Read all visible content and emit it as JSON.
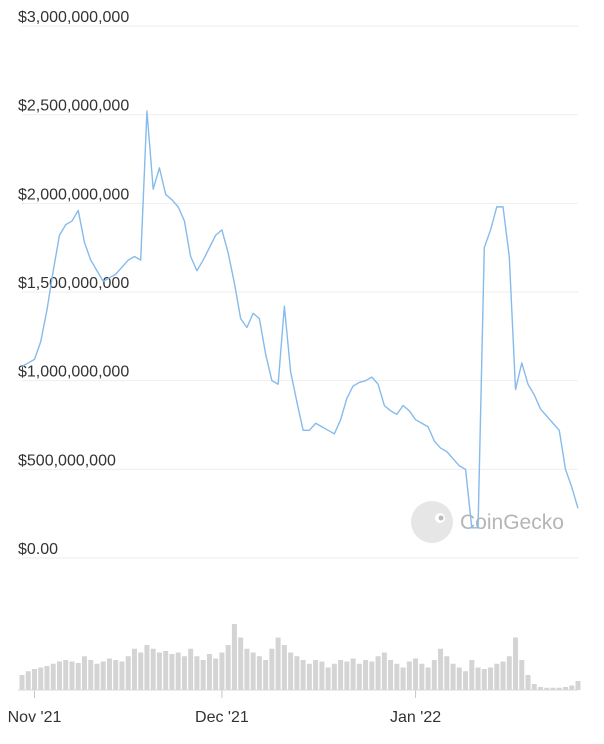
{
  "chart_data": [
    {
      "type": "line",
      "color": "#86bbec",
      "grid": true,
      "watermark": "CoinGecko",
      "ylim": [
        0,
        3000000000
      ],
      "yticks": [
        {
          "value": 0,
          "label": "$0.00"
        },
        {
          "value": 500000000,
          "label": "$500,000,000"
        },
        {
          "value": 1000000000,
          "label": "$1,000,000,000"
        },
        {
          "value": 1500000000,
          "label": "$1,500,000,000"
        },
        {
          "value": 2000000000,
          "label": "$2,000,000,000"
        },
        {
          "value": 2500000000,
          "label": "$2,500,000,000"
        },
        {
          "value": 3000000000,
          "label": "$3,000,000,000"
        }
      ],
      "xlim": [
        0,
        89
      ],
      "xticks": [
        {
          "value": 2,
          "label": "Nov '21"
        },
        {
          "value": 32,
          "label": "Dec '21"
        },
        {
          "value": 63,
          "label": "Jan '22"
        }
      ],
      "values": [
        1080000000,
        1100000000,
        1120000000,
        1220000000,
        1400000000,
        1620000000,
        1820000000,
        1880000000,
        1900000000,
        1960000000,
        1780000000,
        1680000000,
        1620000000,
        1560000000,
        1580000000,
        1600000000,
        1640000000,
        1680000000,
        1700000000,
        1680000000,
        2520000000,
        2080000000,
        2200000000,
        2050000000,
        2020000000,
        1980000000,
        1900000000,
        1700000000,
        1620000000,
        1680000000,
        1750000000,
        1820000000,
        1850000000,
        1720000000,
        1550000000,
        1350000000,
        1300000000,
        1380000000,
        1350000000,
        1150000000,
        1000000000,
        980000000,
        1420000000,
        1050000000,
        880000000,
        720000000,
        720000000,
        760000000,
        740000000,
        720000000,
        700000000,
        780000000,
        900000000,
        970000000,
        990000000,
        1000000000,
        1020000000,
        980000000,
        860000000,
        830000000,
        810000000,
        860000000,
        830000000,
        780000000,
        760000000,
        740000000,
        660000000,
        620000000,
        600000000,
        560000000,
        520000000,
        500000000,
        170000000,
        170000000,
        1750000000,
        1850000000,
        1980000000,
        1980000000,
        1700000000,
        950000000,
        1100000000,
        980000000,
        920000000,
        840000000,
        800000000,
        760000000,
        720000000,
        500000000,
        400000000,
        280000000
      ]
    },
    {
      "type": "bar",
      "color": "#d4d4d4",
      "ylim": [
        0,
        100
      ],
      "xlim": [
        0,
        89
      ],
      "values": [
        20,
        25,
        28,
        30,
        32,
        35,
        38,
        40,
        38,
        36,
        45,
        40,
        35,
        38,
        42,
        40,
        38,
        45,
        55,
        50,
        60,
        55,
        50,
        52,
        48,
        50,
        45,
        55,
        45,
        40,
        48,
        42,
        50,
        60,
        88,
        70,
        55,
        50,
        45,
        40,
        55,
        70,
        60,
        50,
        45,
        40,
        35,
        40,
        38,
        30,
        35,
        40,
        38,
        42,
        35,
        40,
        38,
        45,
        50,
        40,
        35,
        30,
        38,
        42,
        35,
        30,
        40,
        55,
        45,
        35,
        30,
        25,
        40,
        30,
        28,
        30,
        35,
        38,
        45,
        70,
        40,
        20,
        8,
        4,
        3,
        3,
        3,
        4,
        6,
        12
      ]
    }
  ]
}
